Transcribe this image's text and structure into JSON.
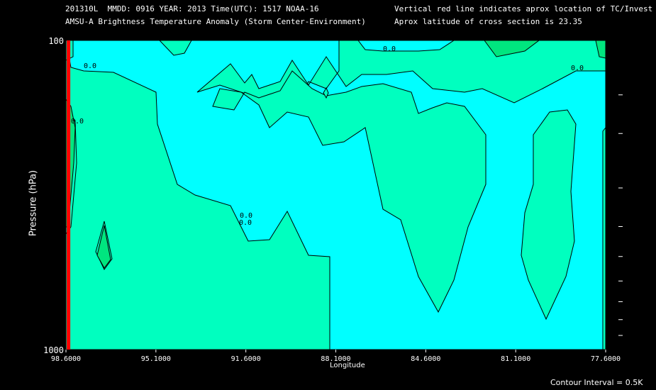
{
  "header": {
    "line1_left": "201310L  MMDD: 0916 YEAR: 2013 Time(UTC): 1517 NOAA-16",
    "line2_left": "AMSU-A Brightness Temperature Anomaly (Storm Center-Environment)",
    "line1_right": "Vertical red line indicates aprox location of TC/Invest",
    "line2_right": "Aprox latitude of cross section is 23.35"
  },
  "footer": {
    "contour_interval": "Contour Interval = 0.5K"
  },
  "colors": {
    "background": "#000000",
    "field_low": "#00ffff",
    "field_mid": "#00ffbf",
    "field_high": "#00e67f",
    "tc_line": "#ff0000"
  },
  "chart_data": {
    "type": "contour",
    "xlabel": "Longitude",
    "ylabel": "Pressure (hPa)",
    "xlim": [
      98.6,
      77.6
    ],
    "ylim": [
      1000,
      100
    ],
    "y_scale": "log",
    "x_ticks": [
      "98.6000",
      "95.1000",
      "91.6000",
      "88.1000",
      "84.6000",
      "81.1000",
      "77.6000"
    ],
    "y_tick_labels": [
      "100",
      "1000"
    ],
    "y_minor_ticks": [
      150,
      200,
      300,
      400,
      500,
      600,
      700,
      800,
      900
    ],
    "contour_labels": [
      "0.0",
      "0.0",
      "0.0",
      "0.0",
      "0.0",
      "0.0"
    ],
    "tc_longitude": 98.5
  }
}
